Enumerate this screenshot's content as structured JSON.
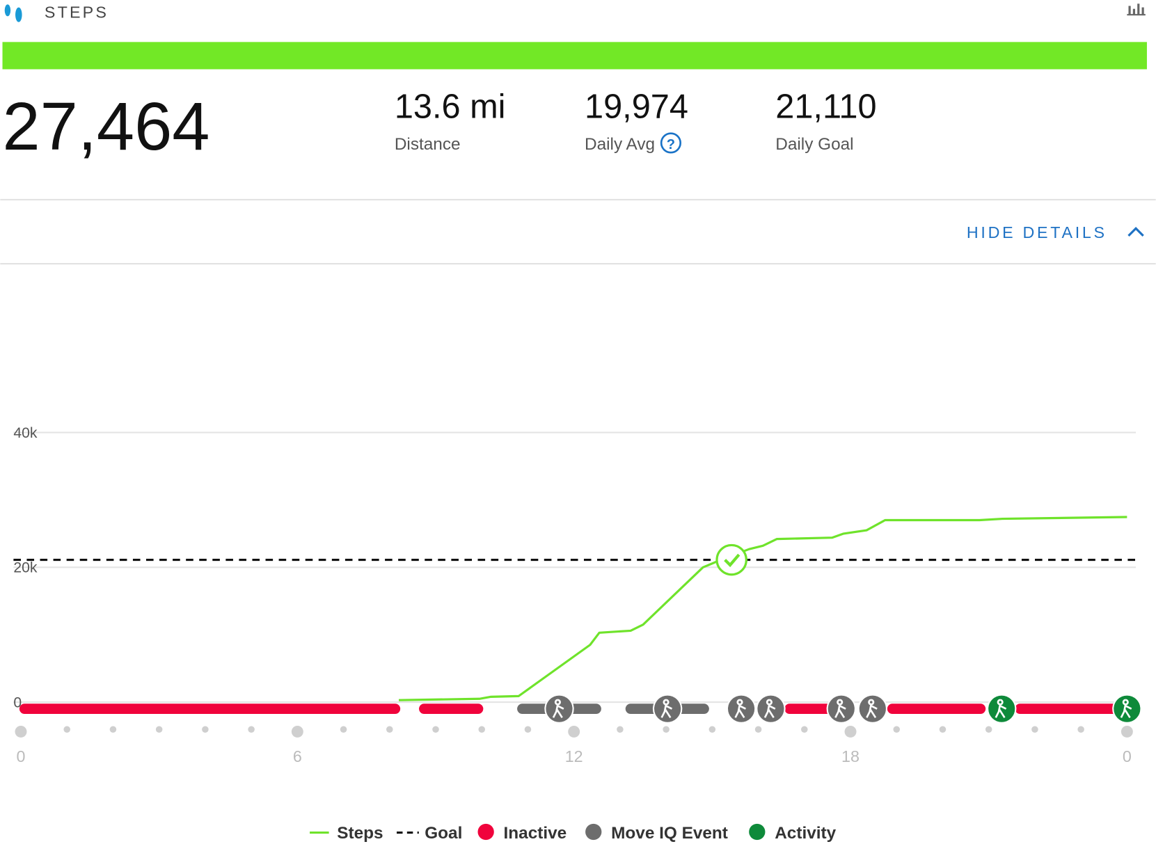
{
  "header": {
    "title": "STEPS"
  },
  "summary": {
    "total": "27,464",
    "stats": [
      {
        "value": "13.6 mi",
        "label": "Distance"
      },
      {
        "value": "19,974",
        "label": "Daily Avg"
      },
      {
        "value": "21,110",
        "label": "Daily Goal"
      }
    ]
  },
  "toggle": "HIDE DETAILS",
  "chart_data": {
    "type": "line",
    "x": [
      8.2,
      9.95,
      10.2,
      10.8,
      12.35,
      12.55,
      13.23,
      13.5,
      14.8,
      15.15,
      15.8,
      16.1,
      16.4,
      17.6,
      17.85,
      18.35,
      18.75,
      20.8,
      21.3,
      24
    ],
    "series": [
      {
        "name": "Steps",
        "color": "#6fe32b",
        "values": [
          300,
          500,
          800,
          900,
          8500,
          10300,
          10600,
          11500,
          20000,
          21000,
          22700,
          23200,
          24200,
          24400,
          25000,
          25500,
          27000,
          27000,
          27200,
          27464
        ]
      }
    ],
    "goal": {
      "name": "Goal",
      "value": 21110,
      "reached_x": 15.42,
      "color": "#111111"
    },
    "xlim": [
      0,
      24
    ],
    "xticks": [
      0,
      6,
      12,
      18,
      {
        "value": 24,
        "label": "0"
      }
    ],
    "ylim": [
      0,
      60000
    ],
    "yticks": [
      0,
      {
        "value": 20000,
        "label": "20k"
      },
      {
        "value": 40000,
        "label": "40k"
      }
    ],
    "grid": true,
    "legend": [
      {
        "name": "Inactive",
        "color": "#f0033c"
      },
      {
        "name": "Move IQ Event",
        "color": "#6d6d6d"
      },
      {
        "name": "Activity",
        "color": "#0e8a3a"
      }
    ],
    "segments": [
      {
        "category": "Inactive",
        "start": 0,
        "end": 8.2
      },
      {
        "category": "Inactive",
        "start": 8.67,
        "end": 10
      },
      {
        "category": "Move IQ Event",
        "start": 10.8,
        "end": 12.56
      },
      {
        "category": "Move IQ Event",
        "start": 13.15,
        "end": 14.9
      },
      {
        "category": "Inactive",
        "start": 16.6,
        "end": 17.8
      },
      {
        "category": "Inactive",
        "start": 18.83,
        "end": 20.9
      },
      {
        "category": "Inactive",
        "start": 21.6,
        "end": 23.9
      }
    ],
    "events": [
      {
        "category": "Move IQ Event",
        "x": 11.68
      },
      {
        "category": "Move IQ Event",
        "x": 14.03
      },
      {
        "category": "Move IQ Event",
        "x": 15.63
      },
      {
        "category": "Move IQ Event",
        "x": 16.27
      },
      {
        "category": "Move IQ Event",
        "x": 17.8
      },
      {
        "category": "Move IQ Event",
        "x": 18.48
      },
      {
        "category": "Activity",
        "x": 21.28
      },
      {
        "category": "Activity",
        "x": 24
      }
    ]
  }
}
